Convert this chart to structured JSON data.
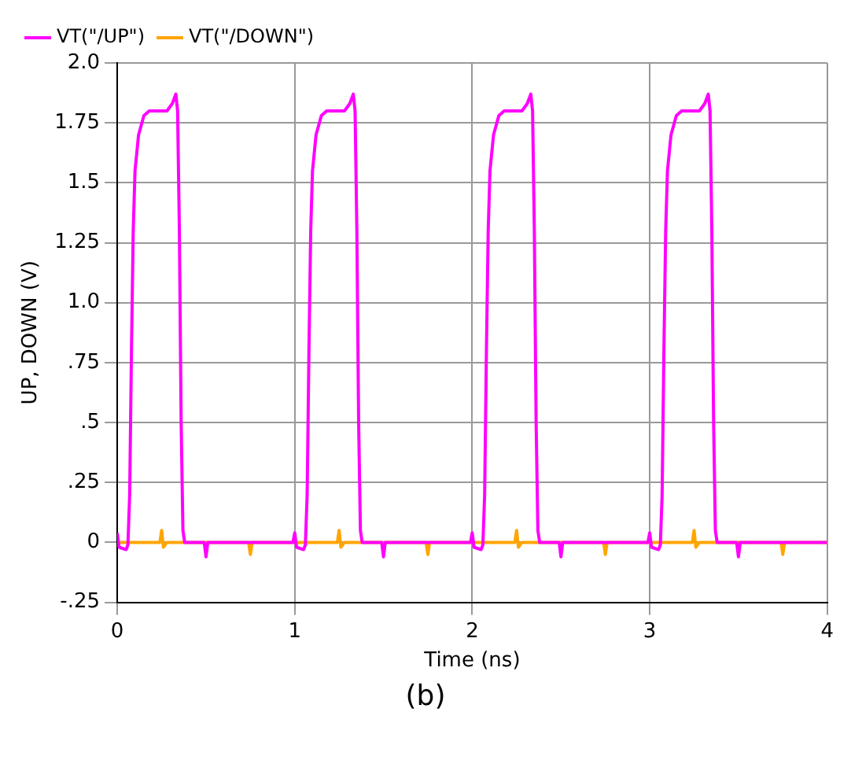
{
  "chart_data": {
    "type": "line",
    "xlabel": "Time (ns)",
    "ylabel": "UP, DOWN (V)",
    "annotations": [
      "(b)"
    ],
    "legend": "top left",
    "grid": true,
    "marker": "none",
    "line_style": "solid",
    "xlim": [
      0,
      4
    ],
    "xticks": [
      0,
      1,
      2,
      3,
      4
    ],
    "ylim": [
      -0.25,
      2.0
    ],
    "yticks": [
      {
        "value": -0.25,
        "label": "-.25"
      },
      0,
      {
        "value": 0.25,
        "label": ".25"
      },
      {
        "value": 0.5,
        "label": ".5"
      },
      {
        "value": 0.75,
        "label": ".75"
      },
      {
        "value": 1.0,
        "label": "1.0"
      },
      1.25,
      1.5,
      1.75,
      {
        "value": 2.0,
        "label": "2.0"
      }
    ],
    "series": [
      {
        "name": "VT(\"/UP\")",
        "color": "#ff00ff",
        "x": [
          0,
          0.01,
          0.05,
          0.06,
          0.07,
          0.08,
          0.09,
          0.1,
          0.12,
          0.15,
          0.18,
          0.28,
          0.31,
          0.33,
          0.34,
          0.35,
          0.36,
          0.37,
          0.38,
          0.49,
          0.5,
          0.51,
          0.99,
          1,
          1.01,
          1.05,
          1.06,
          1.07,
          1.08,
          1.09,
          1.1,
          1.12,
          1.15,
          1.18,
          1.28,
          1.31,
          1.33,
          1.34,
          1.35,
          1.36,
          1.37,
          1.38,
          1.49,
          1.5,
          1.51,
          1.99,
          2,
          2.01,
          2.05,
          2.06,
          2.07,
          2.08,
          2.09,
          2.1,
          2.12,
          2.15,
          2.18,
          2.28,
          2.31,
          2.33,
          2.34,
          2.35,
          2.36,
          2.37,
          2.38,
          2.49,
          2.5,
          2.51,
          2.99,
          3,
          3.01,
          3.05,
          3.06,
          3.07,
          3.08,
          3.09,
          3.1,
          3.12,
          3.15,
          3.18,
          3.28,
          3.31,
          3.33,
          3.34,
          3.35,
          3.36,
          3.37,
          3.38,
          3.49,
          3.5,
          3.51,
          4
        ],
        "values": [
          0.04,
          -0.02,
          -0.03,
          -0.01,
          0.2,
          0.8,
          1.3,
          1.55,
          1.7,
          1.78,
          1.8,
          1.8,
          1.83,
          1.87,
          1.8,
          1.3,
          0.5,
          0.05,
          0,
          0,
          -0.06,
          0,
          0,
          0.04,
          -0.02,
          -0.03,
          -0.01,
          0.2,
          0.8,
          1.3,
          1.55,
          1.7,
          1.78,
          1.8,
          1.8,
          1.83,
          1.87,
          1.8,
          1.3,
          0.5,
          0.05,
          0,
          0,
          -0.06,
          0,
          0,
          0.04,
          -0.02,
          -0.03,
          -0.01,
          0.2,
          0.8,
          1.3,
          1.55,
          1.7,
          1.78,
          1.8,
          1.8,
          1.83,
          1.87,
          1.8,
          1.3,
          0.5,
          0.05,
          0,
          0,
          -0.06,
          0,
          0,
          0.04,
          -0.02,
          -0.03,
          -0.01,
          0.2,
          0.8,
          1.3,
          1.55,
          1.7,
          1.78,
          1.8,
          1.8,
          1.83,
          1.87,
          1.8,
          1.3,
          0.5,
          0.05,
          0,
          0,
          -0.06,
          0,
          0
        ]
      },
      {
        "name": "VT(\"/DOWN\")",
        "color": "#ffa500",
        "x": [
          0,
          0.24,
          0.25,
          0.26,
          0.28,
          0.74,
          0.75,
          0.76,
          1.24,
          1.25,
          1.26,
          1.28,
          1.74,
          1.75,
          1.76,
          2.24,
          2.25,
          2.26,
          2.28,
          2.74,
          2.75,
          2.76,
          3.24,
          3.25,
          3.26,
          3.28,
          3.74,
          3.75,
          3.76,
          4
        ],
        "values": [
          0,
          0,
          0.05,
          -0.02,
          0,
          0,
          -0.05,
          0,
          0,
          0.05,
          -0.02,
          0,
          0,
          -0.05,
          0,
          0,
          0.05,
          -0.02,
          0,
          0,
          -0.05,
          0,
          0,
          0.05,
          -0.02,
          0,
          0,
          -0.05,
          0,
          0
        ]
      }
    ]
  }
}
